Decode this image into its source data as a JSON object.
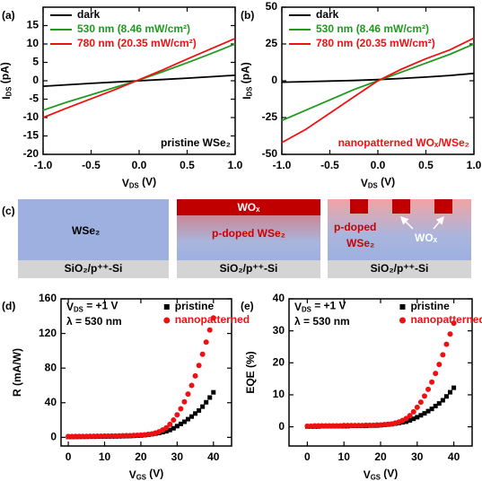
{
  "chart_data": [
    {
      "type": "line",
      "panel_label": "(a)",
      "x": [
        -1,
        -0.75,
        -0.5,
        -0.25,
        0,
        0.25,
        0.5,
        0.75,
        1
      ],
      "series": [
        {
          "name": "dark",
          "color": "#000000",
          "values": [
            -1.5,
            -1.1,
            -0.7,
            -0.35,
            0,
            0.35,
            0.7,
            1.1,
            1.5
          ]
        },
        {
          "name": "530 nm (8.46 mW/cm²)",
          "color": "#1f9a1f",
          "values": [
            -8,
            -5.8,
            -3.8,
            -1.8,
            0.2,
            2.5,
            4.9,
            7.4,
            10
          ]
        },
        {
          "name": "780 nm (20.35 mW/cm²)",
          "color": "#ee1111",
          "values": [
            -10,
            -7.4,
            -4.9,
            -2.4,
            0.3,
            3,
            5.9,
            8.7,
            11.5
          ]
        }
      ],
      "xlim": [
        -1,
        1
      ],
      "xticks": [
        {
          "value": -1,
          "label": "-1.0"
        },
        {
          "value": -0.5,
          "label": "-0.5"
        },
        {
          "value": 0,
          "label": "0.0"
        },
        {
          "value": 0.5,
          "label": "0.5"
        },
        {
          "value": 1,
          "label": "1.0"
        }
      ],
      "ylim": [
        -20,
        20
      ],
      "yticks": [
        -20,
        -15,
        -10,
        -5,
        0,
        5,
        10,
        15
      ],
      "xlabel": {
        "main": "V",
        "sub": "DS",
        "unit": " (V)"
      },
      "ylabel": {
        "main": "I",
        "sub": "DS",
        "unit": " (pA)"
      },
      "annotation": "pristine WSe₂",
      "annotation_color": "#000000",
      "legend": "upper left"
    },
    {
      "type": "line",
      "panel_label": "(b)",
      "x": [
        -1,
        -0.75,
        -0.5,
        -0.25,
        0,
        0.25,
        0.5,
        0.75,
        1
      ],
      "series": [
        {
          "name": "dark",
          "color": "#000000",
          "values": [
            -1,
            -0.6,
            -0.2,
            0.2,
            0.8,
            1.6,
            2.5,
            3.6,
            5
          ]
        },
        {
          "name": "530 nm (8.46 mW/cm²)",
          "color": "#1f9a1f",
          "values": [
            -27,
            -20,
            -13,
            -6,
            0,
            6,
            12,
            18,
            25
          ]
        },
        {
          "name": "780 nm (20.35 mW/cm²)",
          "color": "#ee1111",
          "values": [
            -42,
            -33,
            -22,
            -11,
            0,
            8,
            15,
            21,
            29
          ]
        }
      ],
      "xlim": [
        -1,
        1
      ],
      "xticks": [
        {
          "value": -1,
          "label": "-1.0"
        },
        {
          "value": -0.5,
          "label": "-0.5"
        },
        {
          "value": 0,
          "label": "0.0"
        },
        {
          "value": 0.5,
          "label": "0.5"
        },
        {
          "value": 1,
          "label": "1.0"
        }
      ],
      "ylim": [
        -50,
        50
      ],
      "yticks": [
        -50,
        -25,
        0,
        25,
        50
      ],
      "xlabel": {
        "main": "V",
        "sub": "DS",
        "unit": " (V)"
      },
      "ylabel": {
        "main": "I",
        "sub": "DS",
        "unit": " (pA)"
      },
      "annotation": "nanopatterned WOₓ/WSe₂",
      "annotation_color": "#ee1111",
      "legend": "upper left"
    },
    {
      "type": "scatter",
      "panel_label": "(d)",
      "x": [
        0,
        1,
        2,
        3,
        4,
        5,
        6,
        7,
        8,
        9,
        10,
        11,
        12,
        13,
        14,
        15,
        16,
        17,
        18,
        19,
        20,
        21,
        22,
        23,
        24,
        25,
        26,
        27,
        28,
        29,
        30,
        31,
        32,
        33,
        34,
        35,
        36,
        37,
        38,
        39,
        40
      ],
      "series": [
        {
          "name": "pristine",
          "color": "#000000",
          "marker": "square",
          "values": [
            0.5,
            0.5,
            0.6,
            0.6,
            0.7,
            0.7,
            0.8,
            0.8,
            0.9,
            0.9,
            1,
            1,
            1.1,
            1.1,
            1.2,
            1.3,
            1.4,
            1.5,
            1.7,
            1.9,
            2.1,
            2.5,
            3,
            3.6,
            4.3,
            5,
            6,
            7,
            8.5,
            10.5,
            13,
            15.5,
            18,
            21,
            24,
            27.5,
            31,
            35.5,
            40.5,
            46,
            52
          ]
        },
        {
          "name": "nanopatterned",
          "color": "#ee1111",
          "marker": "circle",
          "values": [
            1,
            1,
            1.1,
            1.1,
            1.2,
            1.2,
            1.3,
            1.3,
            1.4,
            1.4,
            1.5,
            1.5,
            1.6,
            1.7,
            1.8,
            1.9,
            2,
            2.1,
            2.3,
            2.5,
            2.7,
            3,
            3.5,
            4,
            5,
            6.5,
            8.5,
            11,
            15,
            20,
            26,
            33,
            41,
            50,
            60,
            71,
            83,
            96,
            110,
            124,
            138
          ]
        }
      ],
      "xlim": [
        -2,
        45
      ],
      "xticks": [
        0,
        10,
        20,
        30,
        40
      ],
      "ylim": [
        -10,
        160
      ],
      "yticks": [
        0,
        40,
        80,
        120,
        160
      ],
      "xlabel": {
        "main": "V",
        "sub": "GS",
        "unit": " (V)"
      },
      "ylabel": {
        "main": "R (mA/W)"
      },
      "annotations": [
        {
          "main": "V",
          "sub": "DS",
          "rest": " = +1 V"
        },
        {
          "main": "λ = 530 nm"
        }
      ],
      "legend": "upper right"
    },
    {
      "type": "scatter",
      "panel_label": "(e)",
      "x": [
        0,
        1,
        2,
        3,
        4,
        5,
        6,
        7,
        8,
        9,
        10,
        11,
        12,
        13,
        14,
        15,
        16,
        17,
        18,
        19,
        20,
        21,
        22,
        23,
        24,
        25,
        26,
        27,
        28,
        29,
        30,
        31,
        32,
        33,
        34,
        35,
        36,
        37,
        38,
        39,
        40
      ],
      "series": [
        {
          "name": "pristine",
          "color": "#000000",
          "marker": "square",
          "values": [
            0.1,
            0.1,
            0.1,
            0.1,
            0.2,
            0.2,
            0.2,
            0.2,
            0.2,
            0.2,
            0.2,
            0.2,
            0.3,
            0.3,
            0.3,
            0.3,
            0.3,
            0.4,
            0.4,
            0.4,
            0.5,
            0.6,
            0.7,
            0.8,
            1,
            1.2,
            1.4,
            1.6,
            2,
            2.5,
            3,
            3.6,
            4.2,
            4.9,
            5.6,
            6.5,
            7.3,
            8.3,
            9.5,
            10.8,
            12.2
          ]
        },
        {
          "name": "nanopatterned",
          "color": "#ee1111",
          "marker": "circle",
          "values": [
            0.2,
            0.2,
            0.3,
            0.3,
            0.3,
            0.3,
            0.3,
            0.3,
            0.3,
            0.3,
            0.4,
            0.4,
            0.4,
            0.4,
            0.4,
            0.4,
            0.5,
            0.5,
            0.5,
            0.6,
            0.6,
            0.7,
            0.8,
            0.9,
            1.2,
            1.5,
            2,
            2.6,
            3.5,
            4.7,
            6.1,
            7.7,
            9.6,
            11.7,
            14,
            16.7,
            19.5,
            22.5,
            25.8,
            29,
            32.4
          ]
        }
      ],
      "xlim": [
        -5,
        45
      ],
      "xticks": [
        0,
        10,
        20,
        30,
        40
      ],
      "ylim": [
        -6,
        40
      ],
      "yticks": [
        0,
        10,
        20,
        30,
        40
      ],
      "xlabel": {
        "main": "V",
        "sub": "GS",
        "unit": " (V)"
      },
      "ylabel": {
        "main": "EQE (%)"
      },
      "annotations": [
        {
          "main": "V",
          "sub": "DS",
          "rest": " = +1 V"
        },
        {
          "main": "λ = 530 nm"
        }
      ],
      "legend": "upper right"
    }
  ],
  "diagram": {
    "label": "(c)",
    "panels": [
      {
        "layer": "WSe₂",
        "substrate": "SiO₂/p⁺⁺-Si"
      },
      {
        "top": "WOₓ",
        "layer": "p-doped WSe₂",
        "substrate": "SiO₂/p⁺⁺-Si"
      },
      {
        "layer1": "p-doped",
        "layer2": "WSe₂",
        "top": "WOₓ",
        "substrate": "SiO₂/p⁺⁺-Si"
      }
    ]
  }
}
